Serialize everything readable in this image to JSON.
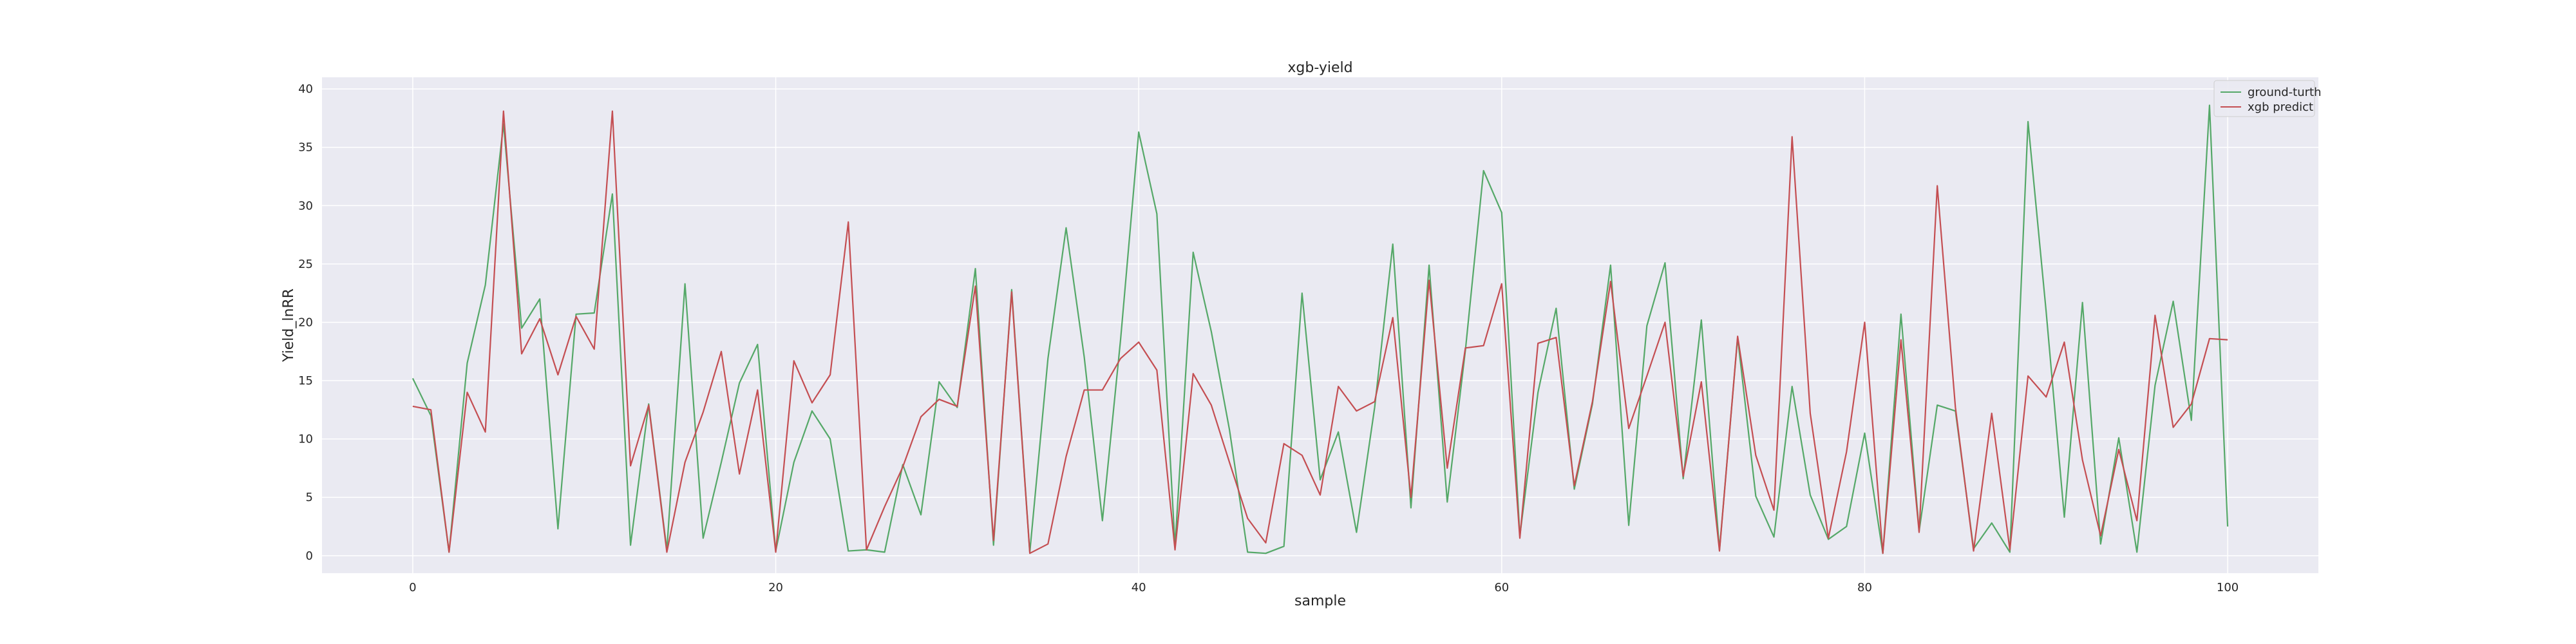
{
  "chart_data": {
    "type": "line",
    "title": "xgb-yield",
    "xlabel": "sample",
    "ylabel": "Yield_lnRR",
    "xlim": [
      -5,
      105
    ],
    "ylim": [
      -1.5,
      41
    ],
    "xticks": [
      0,
      20,
      40,
      60,
      80,
      100
    ],
    "yticks": [
      0,
      5,
      10,
      15,
      20,
      25,
      30,
      35,
      40
    ],
    "grid": true,
    "legend_position": "top-right",
    "x": [
      0,
      1,
      2,
      3,
      4,
      5,
      6,
      7,
      8,
      9,
      10,
      11,
      12,
      13,
      14,
      15,
      16,
      17,
      18,
      19,
      20,
      21,
      22,
      23,
      24,
      25,
      26,
      27,
      28,
      29,
      30,
      31,
      32,
      33,
      34,
      35,
      36,
      37,
      38,
      39,
      40,
      41,
      42,
      43,
      44,
      45,
      46,
      47,
      48,
      49,
      50,
      51,
      52,
      53,
      54,
      55,
      56,
      57,
      58,
      59,
      60,
      61,
      62,
      63,
      64,
      65,
      66,
      67,
      68,
      69,
      70,
      71,
      72,
      73,
      74,
      75,
      76,
      77,
      78,
      79,
      80,
      81,
      82,
      83,
      84,
      85,
      86,
      87,
      88,
      89,
      90,
      91,
      92,
      93,
      94,
      95,
      96,
      97,
      98,
      99,
      100
    ],
    "series": [
      {
        "name": "ground-turth",
        "color": "#55a868",
        "values": [
          15.2,
          12.0,
          0.3,
          16.5,
          23.2,
          37.0,
          19.5,
          22.0,
          2.3,
          20.7,
          20.8,
          31.0,
          0.9,
          13.0,
          0.5,
          23.3,
          1.5,
          8.0,
          14.8,
          18.1,
          0.4,
          8.0,
          12.4,
          10.0,
          0.4,
          0.5,
          0.3,
          7.8,
          3.5,
          14.9,
          12.7,
          24.6,
          0.9,
          22.8,
          0.3,
          16.9,
          28.1,
          17.0,
          3.0,
          18.5,
          36.3,
          29.3,
          0.8,
          26.0,
          19.2,
          10.8,
          0.3,
          0.2,
          0.8,
          22.5,
          6.5,
          10.6,
          2.0,
          12.7,
          26.7,
          4.1,
          24.9,
          4.6,
          17.6,
          33.0,
          29.4,
          1.7,
          14.0,
          21.2,
          5.7,
          13.0,
          24.9,
          2.6,
          19.7,
          25.1,
          6.6,
          20.2,
          0.5,
          18.7,
          5.1,
          1.6,
          14.5,
          5.2,
          1.4,
          2.5,
          10.5,
          0.2,
          20.7,
          2.1,
          12.9,
          12.4,
          0.6,
          2.8,
          0.3,
          37.2,
          20.9,
          3.3,
          21.7,
          1.0,
          10.1,
          0.3,
          14.6,
          21.8,
          11.6,
          38.6,
          2.5
        ]
      },
      {
        "name": "xgb predict",
        "color": "#c44e52",
        "values": [
          12.8,
          12.5,
          0.3,
          14.0,
          10.6,
          38.1,
          17.3,
          20.3,
          15.5,
          20.5,
          17.7,
          38.1,
          7.7,
          12.9,
          0.3,
          8.0,
          12.3,
          17.5,
          7.0,
          14.2,
          0.3,
          16.7,
          13.1,
          15.5,
          28.6,
          0.5,
          4.2,
          7.6,
          11.9,
          13.4,
          12.8,
          23.1,
          1.3,
          22.6,
          0.2,
          1.0,
          8.5,
          14.2,
          14.2,
          16.9,
          18.3,
          15.9,
          0.5,
          15.6,
          12.9,
          8.0,
          3.2,
          1.1,
          9.6,
          8.6,
          5.2,
          14.5,
          12.4,
          13.2,
          20.4,
          5.0,
          23.6,
          7.5,
          17.8,
          18.0,
          23.3,
          1.5,
          18.2,
          18.7,
          6.0,
          13.2,
          23.5,
          10.9,
          15.4,
          20.0,
          6.8,
          14.9,
          0.4,
          18.8,
          8.6,
          3.9,
          35.9,
          12.2,
          1.5,
          8.9,
          20.0,
          0.2,
          18.5,
          2.0,
          31.7,
          12.7,
          0.4,
          12.2,
          0.5,
          15.4,
          13.6,
          18.3,
          8.2,
          1.7,
          9.1,
          3.0,
          20.6,
          11.0,
          13.0,
          18.6,
          18.5
        ]
      }
    ]
  }
}
